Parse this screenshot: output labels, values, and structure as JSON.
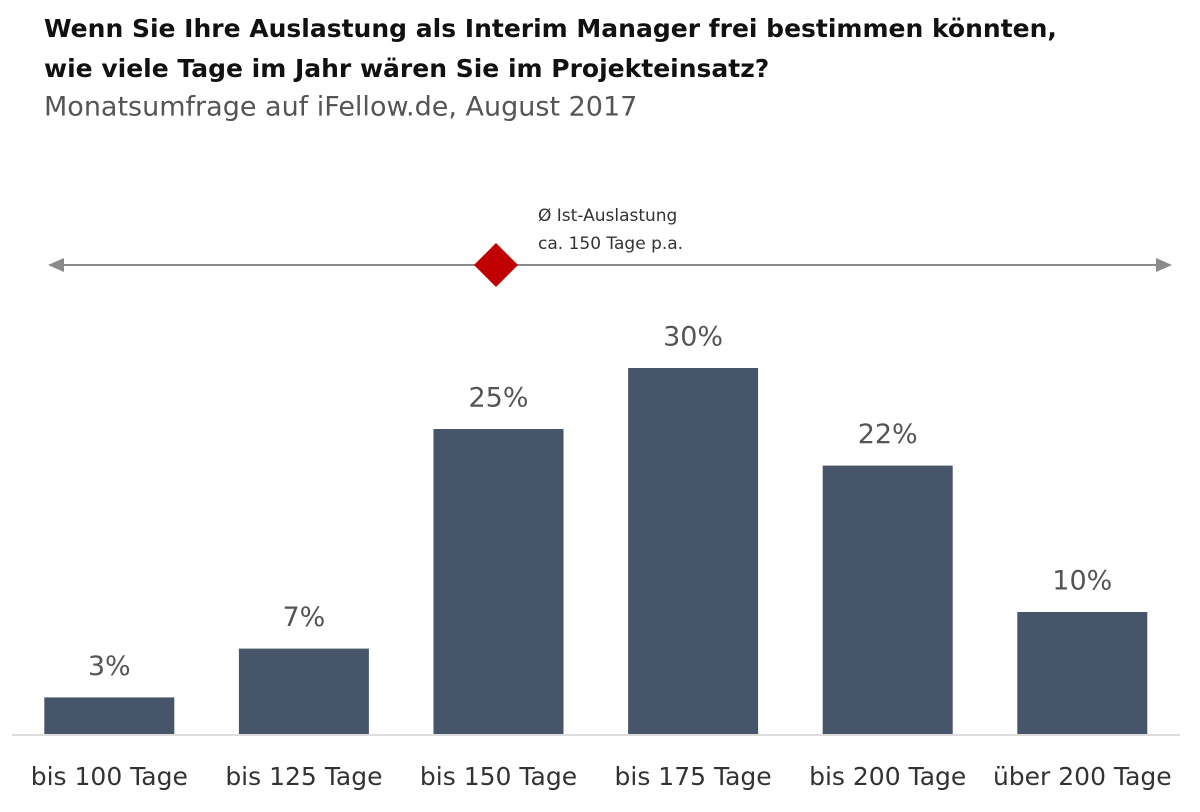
{
  "chart_data": {
    "type": "bar",
    "title": [
      "Wenn Sie Ihre Auslastung als Interim Manager frei bestimmen könnten,",
      "wie viele Tage im Jahr wären Sie im Projekteinsatz?"
    ],
    "subtitle": "Monatsumfrage auf iFellow.de, August 2017",
    "annotations": [
      "Ø Ist-Auslastung",
      "ca. 150 Tage p.a."
    ],
    "categories": [
      "bis 100 Tage",
      "bis 125 Tage",
      "bis 150 Tage",
      "bis 175 Tage",
      "bis 200 Tage",
      "über 200 Tage"
    ],
    "values": [
      3,
      7,
      25,
      30,
      22,
      10
    ],
    "value_labels": [
      "3%",
      "7%",
      "25%",
      "30%",
      "22%",
      "10%"
    ],
    "color": "#465569"
  }
}
